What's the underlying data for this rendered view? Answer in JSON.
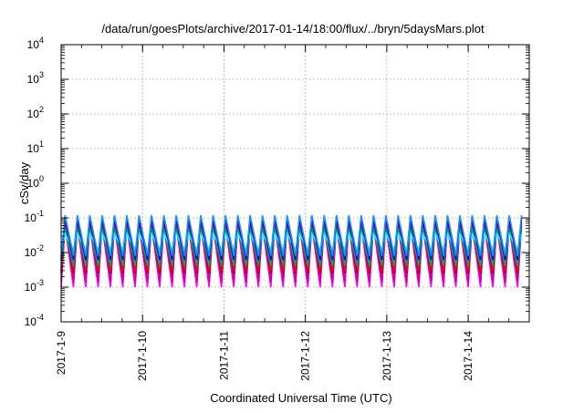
{
  "chart_data": {
    "type": "line",
    "title": "/data/run/goesPlots/archive/2017-01-14/18:00/flux/../bryn/5daysMars.plot",
    "xlabel": "Coordinated Universal Time (UTC)",
    "ylabel": "cSv/day",
    "yscale": "log",
    "ylim": [
      0.0001,
      10000
    ],
    "xlim": [
      "2017-01-09T00:00",
      "2017-01-14T18:00"
    ],
    "grid": true,
    "x_tick_labels": [
      "2017-1-9",
      "2017-1-10",
      "2017-1-11",
      "2017-1-12",
      "2017-1-13",
      "2017-1-14"
    ],
    "y_ticks": [
      {
        "base": "10",
        "exp": "-4"
      },
      {
        "base": "10",
        "exp": "-3"
      },
      {
        "base": "10",
        "exp": "-2"
      },
      {
        "base": "10",
        "exp": "-1"
      },
      {
        "base": "10",
        "exp": "0"
      },
      {
        "base": "10",
        "exp": "1"
      },
      {
        "base": "10",
        "exp": "2"
      },
      {
        "base": "10",
        "exp": "3"
      },
      {
        "base": "10",
        "exp": "4"
      }
    ],
    "oscillation": {
      "cycles_per_day": 6.6,
      "series": [
        {
          "color": "#ff00ff",
          "max": 0.06,
          "min": 0.001
        },
        {
          "color": "#cc0099",
          "max": 0.075,
          "min": 0.0014
        },
        {
          "color": "#8b0000",
          "max": 0.1,
          "min": 0.0025
        },
        {
          "color": "#ff0000",
          "max": 0.11,
          "min": 0.003
        },
        {
          "color": "#00aa44",
          "max": 0.05,
          "min": 0.004
        },
        {
          "color": "#00ffff",
          "max": 0.035,
          "min": 0.012
        },
        {
          "color": "#0000ff",
          "max": 0.1,
          "min": 0.006
        },
        {
          "color": "#1e90ff",
          "max": 0.12,
          "min": 0.008
        }
      ]
    }
  }
}
